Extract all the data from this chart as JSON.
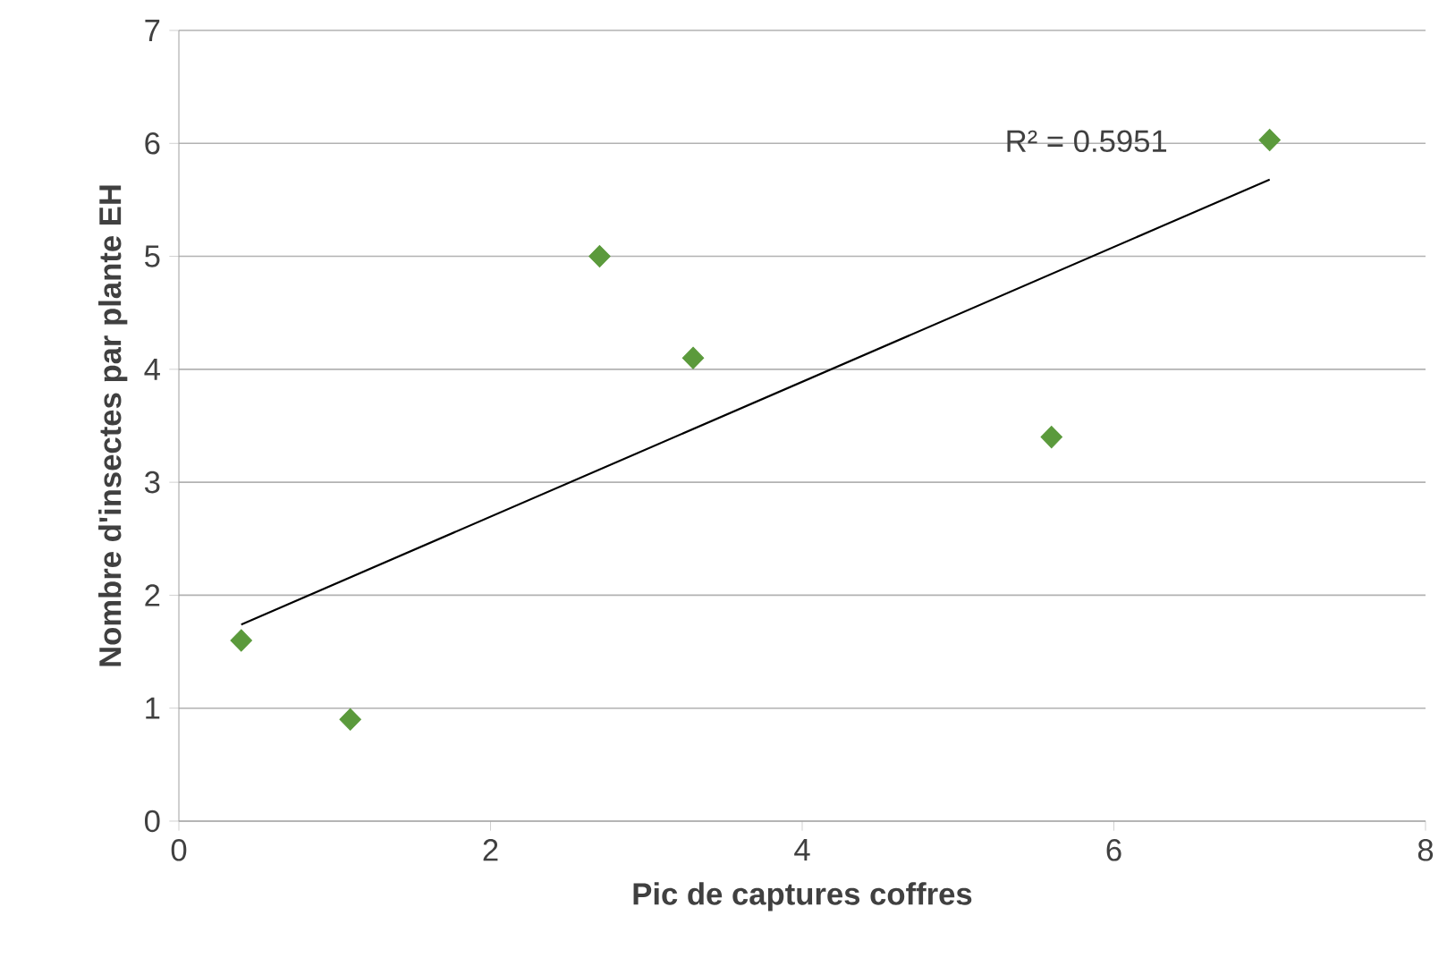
{
  "chart_data": {
    "type": "scatter",
    "xlabel": "Pic de captures coffres",
    "ylabel": "Nombre d'insectes par plante EH",
    "series": [
      {
        "color": "#5b9a3c",
        "marker": "diamond",
        "x": [
          0.4,
          1.1,
          2.7,
          3.3,
          5.6,
          7.0
        ],
        "values": [
          1.6,
          0.9,
          5.0,
          4.1,
          3.4,
          6.03
        ]
      },
      {
        "type": "line",
        "color": "#000000",
        "marker": "none",
        "x": [
          0.4,
          7.0
        ],
        "values": [
          1.74,
          5.68
        ]
      }
    ],
    "annotations": [
      "R² = 0.5951"
    ],
    "xlim": [
      0,
      8
    ],
    "xticks": [
      0,
      2,
      4,
      6,
      8
    ],
    "ylim": [
      0,
      7
    ],
    "yticks": [
      0,
      1,
      2,
      3,
      4,
      5,
      6,
      7
    ],
    "grid": "y"
  }
}
